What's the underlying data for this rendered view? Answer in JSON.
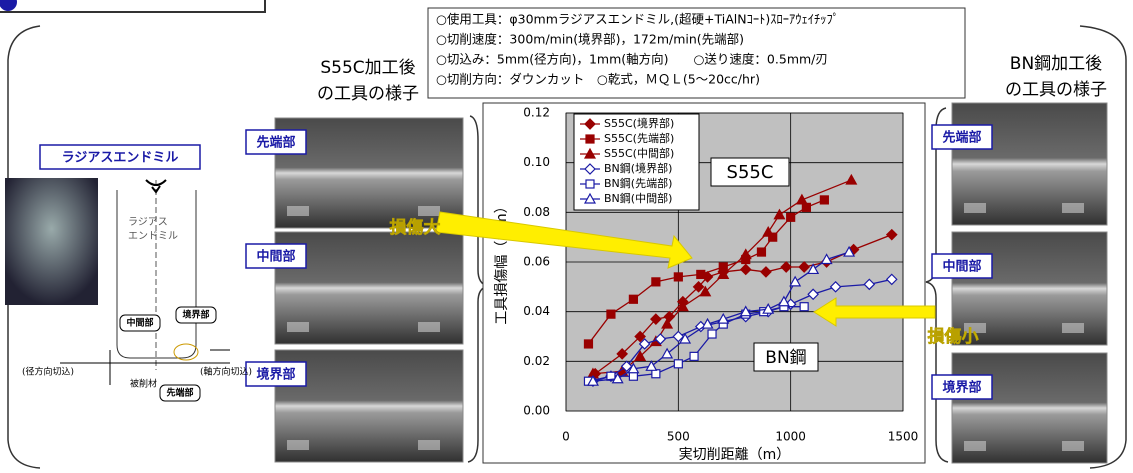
{
  "slide": {
    "conditions": [
      "○使用工具：φ30mmラジアスエンドミル,(超硬+TiAlNｺｰﾄ)ｽﾛｰｱｳｪｲﾁｯﾌﾟ",
      "○切削速度：300m/min(境界部)，172m/min(先端部)",
      "○切込み：5mm(径方向)，1mm(軸方向)　　○送り速度：0.5mm/刃",
      "○切削方向：ダウンカット　○乾式，ＭＱＬ(5～20cc/hr)"
    ],
    "left_caption": [
      "S55C加工後",
      "の工具の様子"
    ],
    "right_caption": [
      "BN鋼加工後",
      "の工具の様子"
    ],
    "left_photos": [
      "先端部",
      "中間部",
      "境界部"
    ],
    "right_photos": [
      "先端部",
      "中間部",
      "境界部"
    ],
    "diagram": {
      "title": "ラジアスエンドミル",
      "tool": [
        "ラジアス",
        "エンドミル"
      ],
      "parts": [
        "中間部",
        "境界部",
        "先端部"
      ],
      "radial": "(径方向切込)",
      "workpiece": "被削材",
      "axial": "(軸方向切込)"
    }
  },
  "chart_data": {
    "type": "line",
    "x_label": "実切削距離（m）",
    "y_label": "工具損傷幅（mm）",
    "xlim": [
      0,
      1500
    ],
    "xticks": [
      0,
      500,
      1000,
      1500
    ],
    "ylim": [
      0,
      0.12
    ],
    "yticks": [
      {
        "value": 0,
        "label": "0.00"
      },
      {
        "value": 0.02,
        "label": "0.02"
      },
      {
        "value": 0.04,
        "label": "0.04"
      },
      {
        "value": 0.06,
        "label": "0.06"
      },
      {
        "value": 0.08,
        "label": "0.08"
      },
      {
        "value": 0.1,
        "label": "0.10"
      },
      {
        "value": 0.12,
        "label": "0.12"
      }
    ],
    "grid": true,
    "legend": "upper-left",
    "annotations": [
      "S55C",
      "BN鋼",
      "損傷大",
      "損傷小"
    ],
    "series": [
      {
        "name": "S55C(境界部)",
        "color": "#990000",
        "marker": "diamond",
        "filled": true,
        "x": [
          130,
          250,
          330,
          400,
          460,
          520,
          590,
          630,
          700,
          800,
          890,
          980,
          1060,
          1160,
          1280,
          1450
        ],
        "values": [
          0.015,
          0.023,
          0.03,
          0.037,
          0.038,
          0.044,
          0.05,
          0.054,
          0.056,
          0.057,
          0.056,
          0.058,
          0.058,
          0.06,
          0.065,
          0.071
        ]
      },
      {
        "name": "S55C(先端部)",
        "color": "#990000",
        "marker": "square",
        "filled": true,
        "x": [
          100,
          200,
          300,
          400,
          500,
          600,
          700,
          800,
          870,
          920,
          1000,
          1070,
          1150
        ],
        "values": [
          0.027,
          0.039,
          0.045,
          0.052,
          0.054,
          0.055,
          0.058,
          0.061,
          0.064,
          0.07,
          0.078,
          0.082,
          0.085
        ]
      },
      {
        "name": "S55C(中間部)",
        "color": "#990000",
        "marker": "triangle",
        "filled": true,
        "x": [
          120,
          250,
          330,
          400,
          450,
          520,
          620,
          700,
          800,
          900,
          950,
          1050,
          1270
        ],
        "values": [
          0.015,
          0.016,
          0.022,
          0.028,
          0.035,
          0.042,
          0.048,
          0.055,
          0.063,
          0.072,
          0.079,
          0.085,
          0.093
        ]
      },
      {
        "name": "BN鋼(境界部)",
        "color": "#1a1aa6",
        "marker": "diamond",
        "filled": false,
        "x": [
          120,
          200,
          270,
          350,
          420,
          500,
          600,
          700,
          800,
          900,
          1000,
          1100,
          1200,
          1350,
          1450
        ],
        "values": [
          0.012,
          0.014,
          0.018,
          0.027,
          0.029,
          0.03,
          0.034,
          0.036,
          0.038,
          0.04,
          0.043,
          0.047,
          0.05,
          0.051,
          0.053
        ]
      },
      {
        "name": "BN鋼(先端部)",
        "color": "#1a1aa6",
        "marker": "square",
        "filled": false,
        "x": [
          100,
          200,
          300,
          400,
          500,
          570,
          650,
          700,
          800,
          880,
          970,
          1060
        ],
        "values": [
          0.012,
          0.014,
          0.014,
          0.015,
          0.019,
          0.022,
          0.031,
          0.035,
          0.039,
          0.04,
          0.042,
          0.042
        ]
      },
      {
        "name": "BN鋼(中間部)",
        "color": "#1a1aa6",
        "marker": "triangle",
        "filled": false,
        "x": [
          120,
          230,
          300,
          380,
          450,
          530,
          630,
          700,
          800,
          900,
          970,
          1020,
          1100,
          1160,
          1260
        ],
        "values": [
          0.012,
          0.013,
          0.017,
          0.018,
          0.023,
          0.029,
          0.035,
          0.037,
          0.04,
          0.041,
          0.044,
          0.052,
          0.057,
          0.061,
          0.064
        ]
      }
    ]
  }
}
